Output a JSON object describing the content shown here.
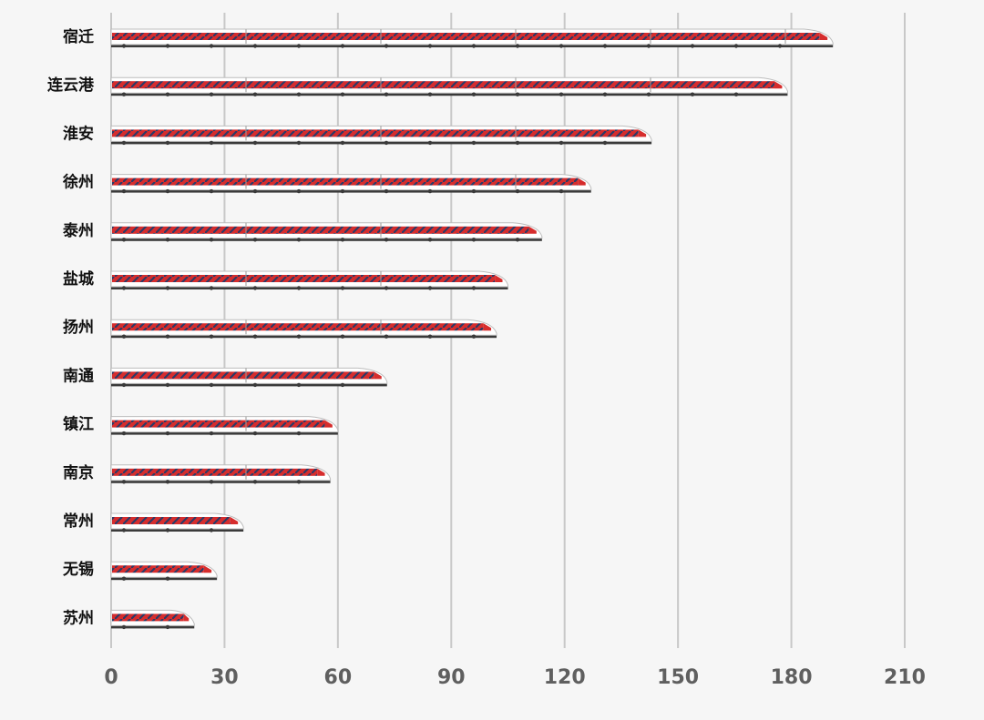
{
  "chart_data": {
    "type": "bar",
    "orientation": "horizontal",
    "categories": [
      "宿迁",
      "连云港",
      "淮安",
      "徐州",
      "泰州",
      "盐城",
      "扬州",
      "南通",
      "镇江",
      "南京",
      "常州",
      "无锡",
      "苏州"
    ],
    "values": [
      191,
      179,
      143,
      127,
      114,
      105,
      102,
      73,
      60,
      58,
      35,
      28,
      22
    ],
    "xlim": [
      0,
      210
    ],
    "xticks": [
      0,
      30,
      60,
      90,
      120,
      150,
      180,
      210
    ],
    "grid": true,
    "legend": "none",
    "colors": {
      "background": "#f6f6f6",
      "gridline": "#c8c8c8",
      "train_body": "#ffffff",
      "train_stripe": "#d62d2d",
      "train_window": "#2c3a66",
      "train_base": "#3a3a3a",
      "label_text": "#111111",
      "tick_text": "#5f5f5f"
    }
  }
}
